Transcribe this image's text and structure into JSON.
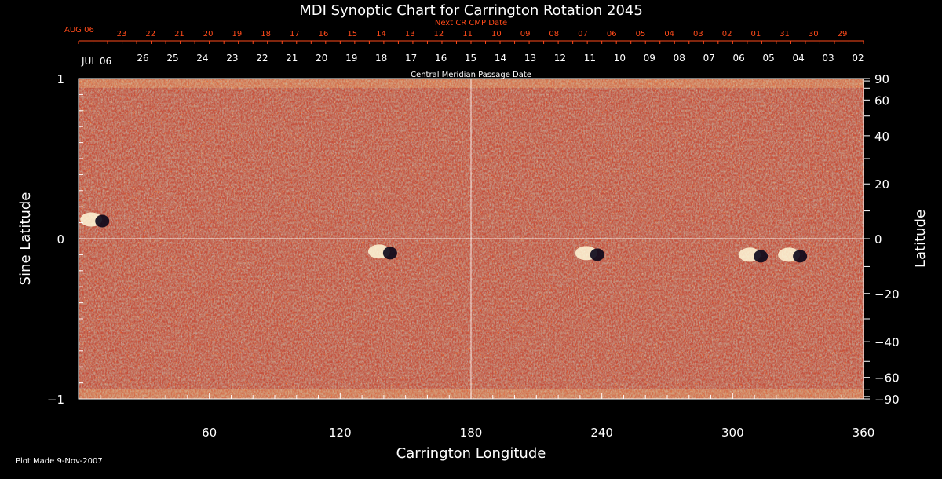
{
  "chart_data": {
    "type": "heatmap",
    "title": "MDI Synoptic Chart for Carrington Rotation 2045",
    "xlabel": "Carrington Longitude",
    "ylabel_left": "Sine Latitude",
    "ylabel_right": "Latitude",
    "xlim": [
      0,
      360
    ],
    "ylim": [
      -1,
      1
    ],
    "x_ticks": [
      60,
      120,
      180,
      240,
      300,
      360
    ],
    "y_ticks_left": [
      "1",
      "0",
      "−1"
    ],
    "y_ticks_left_values": [
      1,
      0,
      -1
    ],
    "y_ticks_right": [
      90,
      60,
      40,
      20,
      0,
      -20,
      -40,
      -60,
      -90
    ],
    "top_label_cmp": "Central Meridian Passage Date",
    "top_label_next": "Next CR CMP Date",
    "start_date_current": "JUL 06",
    "start_date_next": "AUG 06",
    "cmp_dates_current": [
      "26",
      "25",
      "24",
      "23",
      "22",
      "21",
      "20",
      "19",
      "18",
      "17",
      "16",
      "15",
      "14",
      "13",
      "12",
      "11",
      "10",
      "09",
      "08",
      "07",
      "06",
      "05",
      "04",
      "03",
      "02"
    ],
    "cmp_dates_next": [
      "23",
      "22",
      "21",
      "20",
      "19",
      "18",
      "17",
      "16",
      "15",
      "14",
      "13",
      "12",
      "11",
      "10",
      "09",
      "08",
      "07",
      "06",
      "05",
      "04",
      "03",
      "02",
      "01",
      "31",
      "30",
      "29"
    ],
    "grid": "center lines at longitude 180 and latitude 0",
    "colors": {
      "background": "#000000",
      "field": "#ff5a10",
      "positive": "#ffffff",
      "negative": "#1a0a3a",
      "next_dates": "#ff4a1a"
    },
    "features": [
      {
        "type": "active region",
        "longitude": 8,
        "sine_latitude": 0.12
      },
      {
        "type": "active region",
        "longitude": 140,
        "sine_latitude": -0.08
      },
      {
        "type": "active region",
        "longitude": 235,
        "sine_latitude": -0.09
      },
      {
        "type": "active region",
        "longitude": 310,
        "sine_latitude": -0.1
      },
      {
        "type": "active region",
        "longitude": 328,
        "sine_latitude": -0.1
      }
    ]
  },
  "footer": "Plot Made  9-Nov-2007"
}
